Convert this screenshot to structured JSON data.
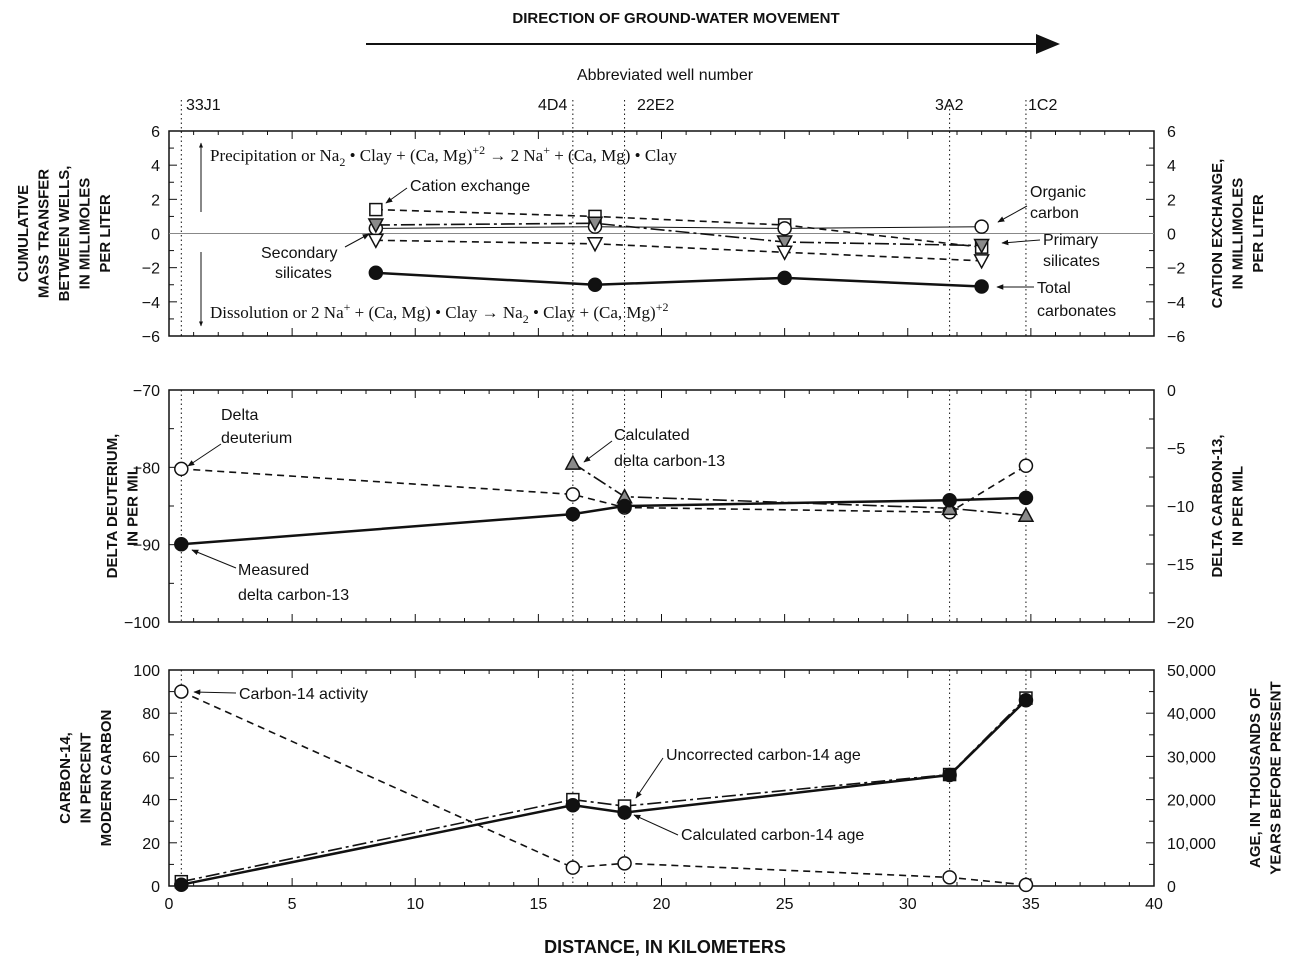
{
  "header": {
    "direction_label": "DIRECTION OF GROUND-WATER MOVEMENT",
    "wells_title": "Abbreviated well number"
  },
  "wells": [
    {
      "label": "33J1",
      "x": 0.5
    },
    {
      "label": "4D4",
      "x": 16.4
    },
    {
      "label": "22E2",
      "x": 18.5
    },
    {
      "label": "3A2",
      "x": 31.7
    },
    {
      "label": "1C2",
      "x": 34.8
    }
  ],
  "xaxis": {
    "label": "DISTANCE, IN KILOMETERS",
    "range": [
      0,
      40
    ],
    "ticks": [
      "0",
      "5",
      "10",
      "15",
      "20",
      "25",
      "30",
      "35",
      "40"
    ]
  },
  "chart_data": [
    {
      "type": "line",
      "panel": "mass-transfer",
      "ylabel_left": [
        "CUMULATIVE",
        "MASS TRANSFER",
        "BETWEEN WELLS,",
        "IN MILLIMOLES",
        "PER LITER"
      ],
      "ylabel_right": [
        "CATION EXCHANGE,",
        "IN MILLIMOLES",
        "PER LITER"
      ],
      "ylim": [
        -6,
        6
      ],
      "yticks_left": [
        "6",
        "4",
        "2",
        "0",
        "−2",
        "−4",
        "−6"
      ],
      "yticks_right": [
        "6",
        "4",
        "2",
        "0",
        "−2",
        "−4",
        "−6"
      ],
      "series": [
        {
          "name": "Cation exchange",
          "marker": "square-open",
          "dash": "7,5",
          "x": [
            8.4,
            17.3,
            25.0,
            33.0
          ],
          "y": [
            1.4,
            1.0,
            0.5,
            -0.8
          ]
        },
        {
          "name": "Organic carbon",
          "marker": "circle-open",
          "dash": "",
          "thin": true,
          "x": [
            8.4,
            17.3,
            25.0,
            33.0
          ],
          "y": [
            0.3,
            0.4,
            0.3,
            0.4
          ]
        },
        {
          "name": "Primary silicates",
          "marker": "tri-down-gray",
          "dash": "14,4,3,4",
          "x": [
            8.4,
            17.3,
            25.0,
            33.0
          ],
          "y": [
            0.5,
            0.6,
            -0.5,
            -0.7
          ]
        },
        {
          "name": "Secondary silicates",
          "marker": "tri-down-open",
          "dash": "7,5",
          "x": [
            8.4,
            17.3,
            25.0,
            33.0
          ],
          "y": [
            -0.4,
            -0.6,
            -1.1,
            -1.6
          ]
        },
        {
          "name": "Total carbonates",
          "marker": "circle-filled",
          "dash": "",
          "x": [
            8.4,
            17.3,
            25.0,
            33.0
          ],
          "y": [
            -2.3,
            -3.0,
            -2.6,
            -3.1
          ]
        }
      ],
      "annotations": {
        "precip_prefix": "Precipitation or Na",
        "dissol_prefix": "Dissolution or 2 Na",
        "dissol_mid": " + (Ca, Mg) • Clay → Na",
        "clay_suffix": " • Clay + (Ca, Mg)",
        "precip_rhs": " 2 Na",
        "precip_rhs2": " + (Ca, Mg) • Clay",
        "precip_mid": " • Clay + (Ca, Mg)",
        "sub2": "2",
        "sup_plus": "+",
        "sup_plus2": "+2",
        "cation_exchange": "Cation exchange",
        "organic": "Organic",
        "carbon": "carbon",
        "secondary": "Secondary",
        "silicates": "silicates",
        "primary": "Primary",
        "silicates2": "silicates",
        "total": "Total",
        "carbonates": "carbonates"
      }
    },
    {
      "type": "line",
      "panel": "isotopes",
      "ylabel_left": [
        "DELTA DEUTERIUM,",
        "IN PER MIL"
      ],
      "ylabel_right": [
        "DELTA CARBON-13,",
        "IN PER MIL"
      ],
      "ylim": [
        -100,
        -70
      ],
      "ylim_right": [
        -20,
        0
      ],
      "yticks_left": [
        "−70",
        "−80",
        "−90",
        "−100"
      ],
      "yticks_right": [
        "0",
        "−5",
        "−10",
        "−15",
        "−20"
      ],
      "series": [
        {
          "name": "Delta deuterium",
          "axis": "left",
          "marker": "circle-open",
          "dash": "7,5",
          "x": [
            0.5,
            16.4,
            18.5,
            31.7,
            34.8
          ],
          "y": [
            -80.2,
            -83.5,
            -85.2,
            -85.8,
            -79.8
          ]
        },
        {
          "name": "Calculated delta carbon-13",
          "axis": "right",
          "marker": "tri-up-gray",
          "dash": "14,4,3,4",
          "x": [
            16.4,
            18.5,
            31.7,
            34.8
          ],
          "y": [
            -6.3,
            -9.2,
            -10.2,
            -10.8
          ]
        },
        {
          "name": "Measured delta carbon-13",
          "axis": "right",
          "marker": "circle-filled",
          "dash": "",
          "x": [
            0.5,
            16.4,
            18.5,
            31.7,
            34.8
          ],
          "y": [
            -13.3,
            -10.7,
            -10.0,
            -9.5,
            -9.3
          ]
        }
      ],
      "annotations": {
        "delta": "Delta",
        "deuterium": "deuterium",
        "calculated": "Calculated",
        "calc_dc13": "delta carbon-13",
        "measured": "Measured",
        "meas_dc13": "delta carbon-13"
      }
    },
    {
      "type": "line",
      "panel": "carbon-14",
      "ylabel_left": [
        "CARBON-14,",
        "IN PERCENT",
        "MODERN CARBON"
      ],
      "ylabel_right": [
        "AGE, IN THOUSANDS OF",
        "YEARS BEFORE PRESENT"
      ],
      "ylim": [
        0,
        100
      ],
      "ylim_right": [
        0,
        50000
      ],
      "yticks_left": [
        "100",
        "80",
        "60",
        "40",
        "20",
        "0"
      ],
      "yticks_right": [
        "50,000",
        "40,000",
        "30,000",
        "20,000",
        "10,000",
        "0"
      ],
      "series": [
        {
          "name": "Carbon-14 activity",
          "axis": "left",
          "marker": "circle-open",
          "dash": "7,5",
          "x": [
            0.5,
            16.4,
            18.5,
            31.7,
            34.8
          ],
          "y": [
            90,
            8.5,
            10.5,
            4,
            0.5
          ]
        },
        {
          "name": "Uncorrected carbon-14 age",
          "axis": "right",
          "marker": "square-open",
          "dash": "14,4,3,4",
          "x": [
            0.5,
            16.4,
            18.5,
            31.7,
            34.8
          ],
          "y": [
            1000,
            20000,
            18500,
            25800,
            43500
          ]
        },
        {
          "name": "Calculated carbon-14 age",
          "axis": "right",
          "marker": "circle-filled",
          "dash": "",
          "x": [
            0.5,
            16.4,
            18.5,
            31.7,
            34.8
          ],
          "y": [
            300,
            18700,
            17000,
            25700,
            43000
          ]
        }
      ],
      "annotations": {
        "c14_activity": "Carbon-14 activity",
        "uncorrected": "Uncorrected carbon-14 age",
        "calculated": "Calculated carbon-14 age"
      }
    }
  ]
}
